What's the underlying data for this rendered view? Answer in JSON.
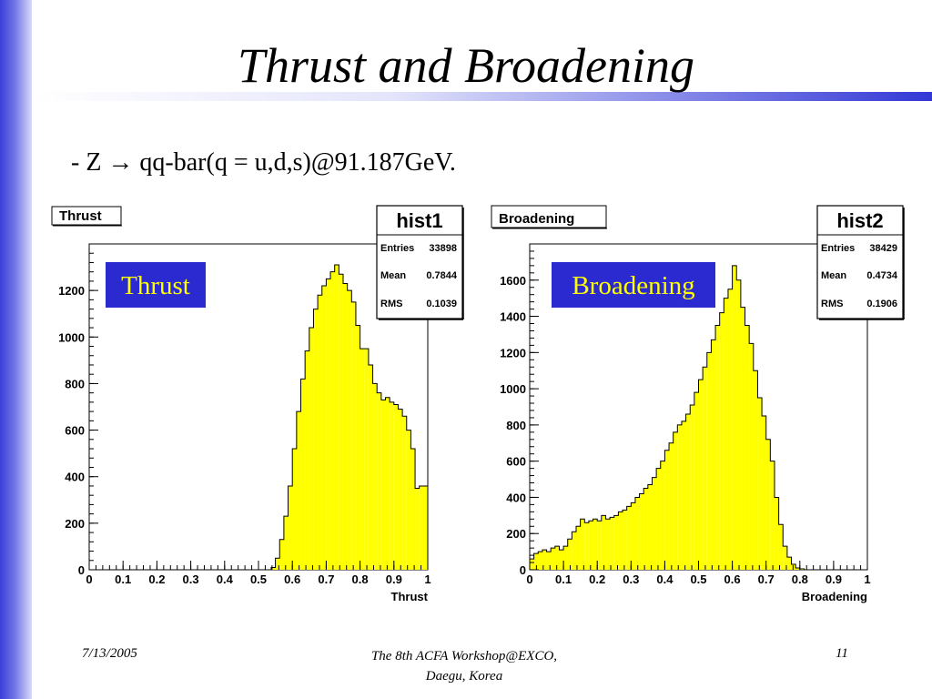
{
  "slide": {
    "title": "Thrust and Broadening",
    "subtitle": "- Z → qq-bar(q = u,d,s)@91.187GeV.",
    "footer_date": "7/13/2005",
    "footer_center_line1": "The 8th ACFA Workshop@EXCO,",
    "footer_center_line2": "Daegu, Korea",
    "page_number": "11"
  },
  "colors": {
    "fill": "#ffff00",
    "overlay_bg": "#2a2ad0",
    "overlay_text": "#ffff00"
  },
  "chart_data": [
    {
      "type": "bar",
      "title": "Thrust",
      "overlay_label": "Thrust",
      "xlabel": "Thrust",
      "ylabel": "",
      "xlim": [
        0,
        1
      ],
      "ylim": [
        0,
        1400
      ],
      "x_ticks": [
        "0",
        "0.1",
        "0.2",
        "0.3",
        "0.4",
        "0.5",
        "0.6",
        "0.7",
        "0.8",
        "0.9",
        "1"
      ],
      "y_ticks": [
        "0",
        "200",
        "400",
        "600",
        "800",
        "1000",
        "1200"
      ],
      "bin_width": 0.0125,
      "bin_starts": [
        0.5375,
        0.55,
        0.5625,
        0.575,
        0.5875,
        0.6,
        0.6125,
        0.625,
        0.6375,
        0.65,
        0.6625,
        0.675,
        0.6875,
        0.7,
        0.7125,
        0.725,
        0.7375,
        0.75,
        0.7625,
        0.775,
        0.7875,
        0.8,
        0.8125,
        0.825,
        0.8375,
        0.85,
        0.8625,
        0.875,
        0.8875,
        0.9,
        0.9125,
        0.925,
        0.9375,
        0.95,
        0.9625,
        0.975,
        0.9875
      ],
      "values": [
        10,
        50,
        130,
        230,
        360,
        520,
        680,
        820,
        940,
        1040,
        1120,
        1180,
        1220,
        1250,
        1280,
        1310,
        1270,
        1230,
        1200,
        1150,
        1050,
        950,
        950,
        880,
        800,
        760,
        730,
        740,
        720,
        710,
        690,
        660,
        600,
        520,
        350,
        360,
        360
      ],
      "stats": {
        "name": "hist1",
        "entries_label": "Entries",
        "entries": "33898",
        "mean_label": "Mean",
        "mean": "0.7844",
        "rms_label": "RMS",
        "rms": "0.1039"
      }
    },
    {
      "type": "bar",
      "title": "Broadening",
      "overlay_label": "Broadening",
      "xlabel": "Broadening",
      "ylabel": "",
      "xlim": [
        0,
        1
      ],
      "ylim": [
        0,
        1800
      ],
      "x_ticks": [
        "0",
        "0.1",
        "0.2",
        "0.3",
        "0.4",
        "0.5",
        "0.6",
        "0.7",
        "0.8",
        "0.9",
        "1"
      ],
      "y_ticks": [
        "0",
        "200",
        "400",
        "600",
        "800",
        "1000",
        "1200",
        "1400",
        "1600"
      ],
      "bin_width": 0.0125,
      "bin_starts": [
        0,
        0.0125,
        0.025,
        0.0375,
        0.05,
        0.0625,
        0.075,
        0.0875,
        0.1,
        0.1125,
        0.125,
        0.1375,
        0.15,
        0.1625,
        0.175,
        0.1875,
        0.2,
        0.2125,
        0.225,
        0.2375,
        0.25,
        0.2625,
        0.275,
        0.2875,
        0.3,
        0.3125,
        0.325,
        0.3375,
        0.35,
        0.3625,
        0.375,
        0.3875,
        0.4,
        0.4125,
        0.425,
        0.4375,
        0.45,
        0.4625,
        0.475,
        0.4875,
        0.5,
        0.5125,
        0.525,
        0.5375,
        0.55,
        0.5625,
        0.575,
        0.5875,
        0.6,
        0.6125,
        0.625,
        0.6375,
        0.65,
        0.6625,
        0.675,
        0.6875,
        0.7,
        0.7125,
        0.725,
        0.7375,
        0.75,
        0.7625,
        0.775,
        0.7875,
        0.8
      ],
      "values": [
        60,
        90,
        100,
        110,
        100,
        120,
        130,
        110,
        130,
        170,
        210,
        240,
        280,
        260,
        270,
        280,
        270,
        300,
        280,
        290,
        300,
        320,
        330,
        350,
        370,
        400,
        420,
        450,
        470,
        510,
        560,
        600,
        660,
        700,
        760,
        800,
        820,
        860,
        910,
        980,
        1050,
        1120,
        1200,
        1270,
        1350,
        1420,
        1500,
        1550,
        1680,
        1600,
        1450,
        1350,
        1250,
        1100,
        950,
        850,
        720,
        600,
        400,
        250,
        130,
        70,
        30,
        10,
        5
      ],
      "stats": {
        "name": "hist2",
        "entries_label": "Entries",
        "entries": "38429",
        "mean_label": "Mean",
        "mean": "0.4734",
        "rms_label": "RMS",
        "rms": "0.1906"
      }
    }
  ]
}
